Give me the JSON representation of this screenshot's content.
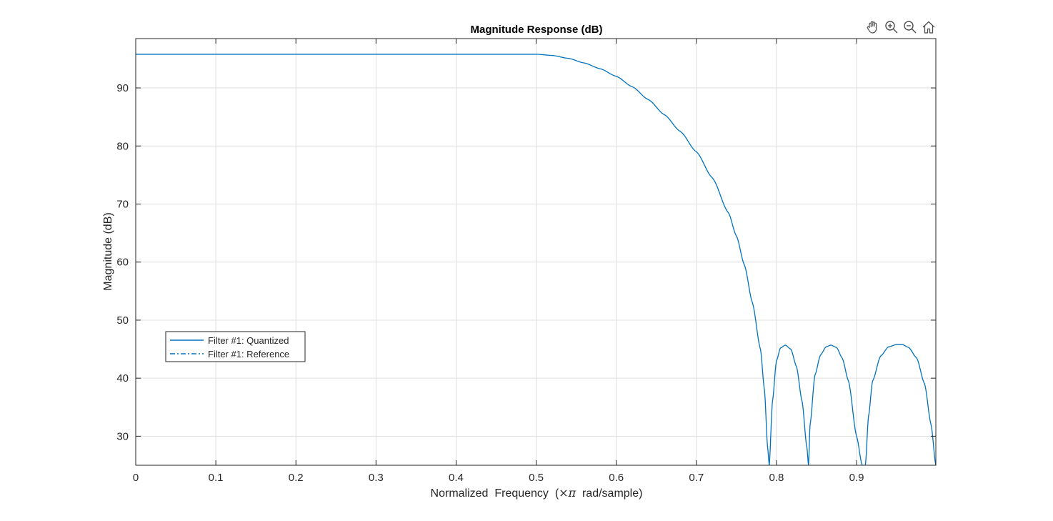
{
  "toolbar": {
    "icons": [
      "pan-hand-icon",
      "zoom-in-icon",
      "zoom-out-icon",
      "home-restore-icon"
    ]
  },
  "colors": {
    "series": "#0072BD",
    "axes": "#262626",
    "grid": "#DFDFDF",
    "background": "#FFFFFF"
  },
  "chart_data": {
    "type": "line",
    "title": "Magnitude Response (dB)",
    "xlabel_pre": "Normalized  Frequency  (",
    "xlabel_sym": "×π",
    "xlabel_post": "  rad/sample)",
    "ylabel": "Magnitude (dB)",
    "xlim": [
      0,
      0.999
    ],
    "ylim": [
      25,
      98.5
    ],
    "xticks": [
      "0",
      "0.1",
      "0.2",
      "0.3",
      "0.4",
      "0.5",
      "0.6",
      "0.7",
      "0.8",
      "0.9"
    ],
    "yticks": [
      "30",
      "40",
      "50",
      "60",
      "70",
      "80",
      "90"
    ],
    "grid": true,
    "legend_position": "lower-left",
    "legend": [
      {
        "label": "Filter #1: Quantized",
        "style": "solid"
      },
      {
        "label": "Filter #1: Reference",
        "style": "dash-dot"
      }
    ],
    "series": [
      {
        "name": "Filter #1: Quantized",
        "x": [
          0,
          0.1,
          0.2,
          0.3,
          0.4,
          0.45,
          0.5,
          0.52,
          0.54,
          0.56,
          0.58,
          0.6,
          0.62,
          0.64,
          0.66,
          0.68,
          0.7,
          0.72,
          0.74,
          0.75,
          0.76,
          0.77,
          0.78,
          0.785,
          0.789,
          0.791,
          0.795,
          0.8,
          0.805,
          0.811,
          0.818,
          0.825,
          0.832,
          0.838,
          0.84,
          0.842,
          0.848,
          0.855,
          0.862,
          0.868,
          0.875,
          0.882,
          0.89,
          0.9,
          0.907,
          0.911,
          0.915,
          0.92,
          0.93,
          0.94,
          0.95,
          0.957,
          0.965,
          0.975,
          0.985,
          0.993,
          0.999
        ],
        "y": [
          95.8,
          95.8,
          95.8,
          95.8,
          95.8,
          95.8,
          95.8,
          95.6,
          95.1,
          94.3,
          93.3,
          92.0,
          90.2,
          88.0,
          85.4,
          82.5,
          79.0,
          74.5,
          68.5,
          64.5,
          59.5,
          53.0,
          45.0,
          38.0,
          28.0,
          25.0,
          36.0,
          43.0,
          45.2,
          45.7,
          45.0,
          42.0,
          36.0,
          28.0,
          25.0,
          32.0,
          40.5,
          44.0,
          45.4,
          45.7,
          45.3,
          43.5,
          39.5,
          30.0,
          25.0,
          25.0,
          33.5,
          39.5,
          43.8,
          45.4,
          45.8,
          45.8,
          45.3,
          43.5,
          39.0,
          32.0,
          25.0
        ]
      }
    ]
  }
}
